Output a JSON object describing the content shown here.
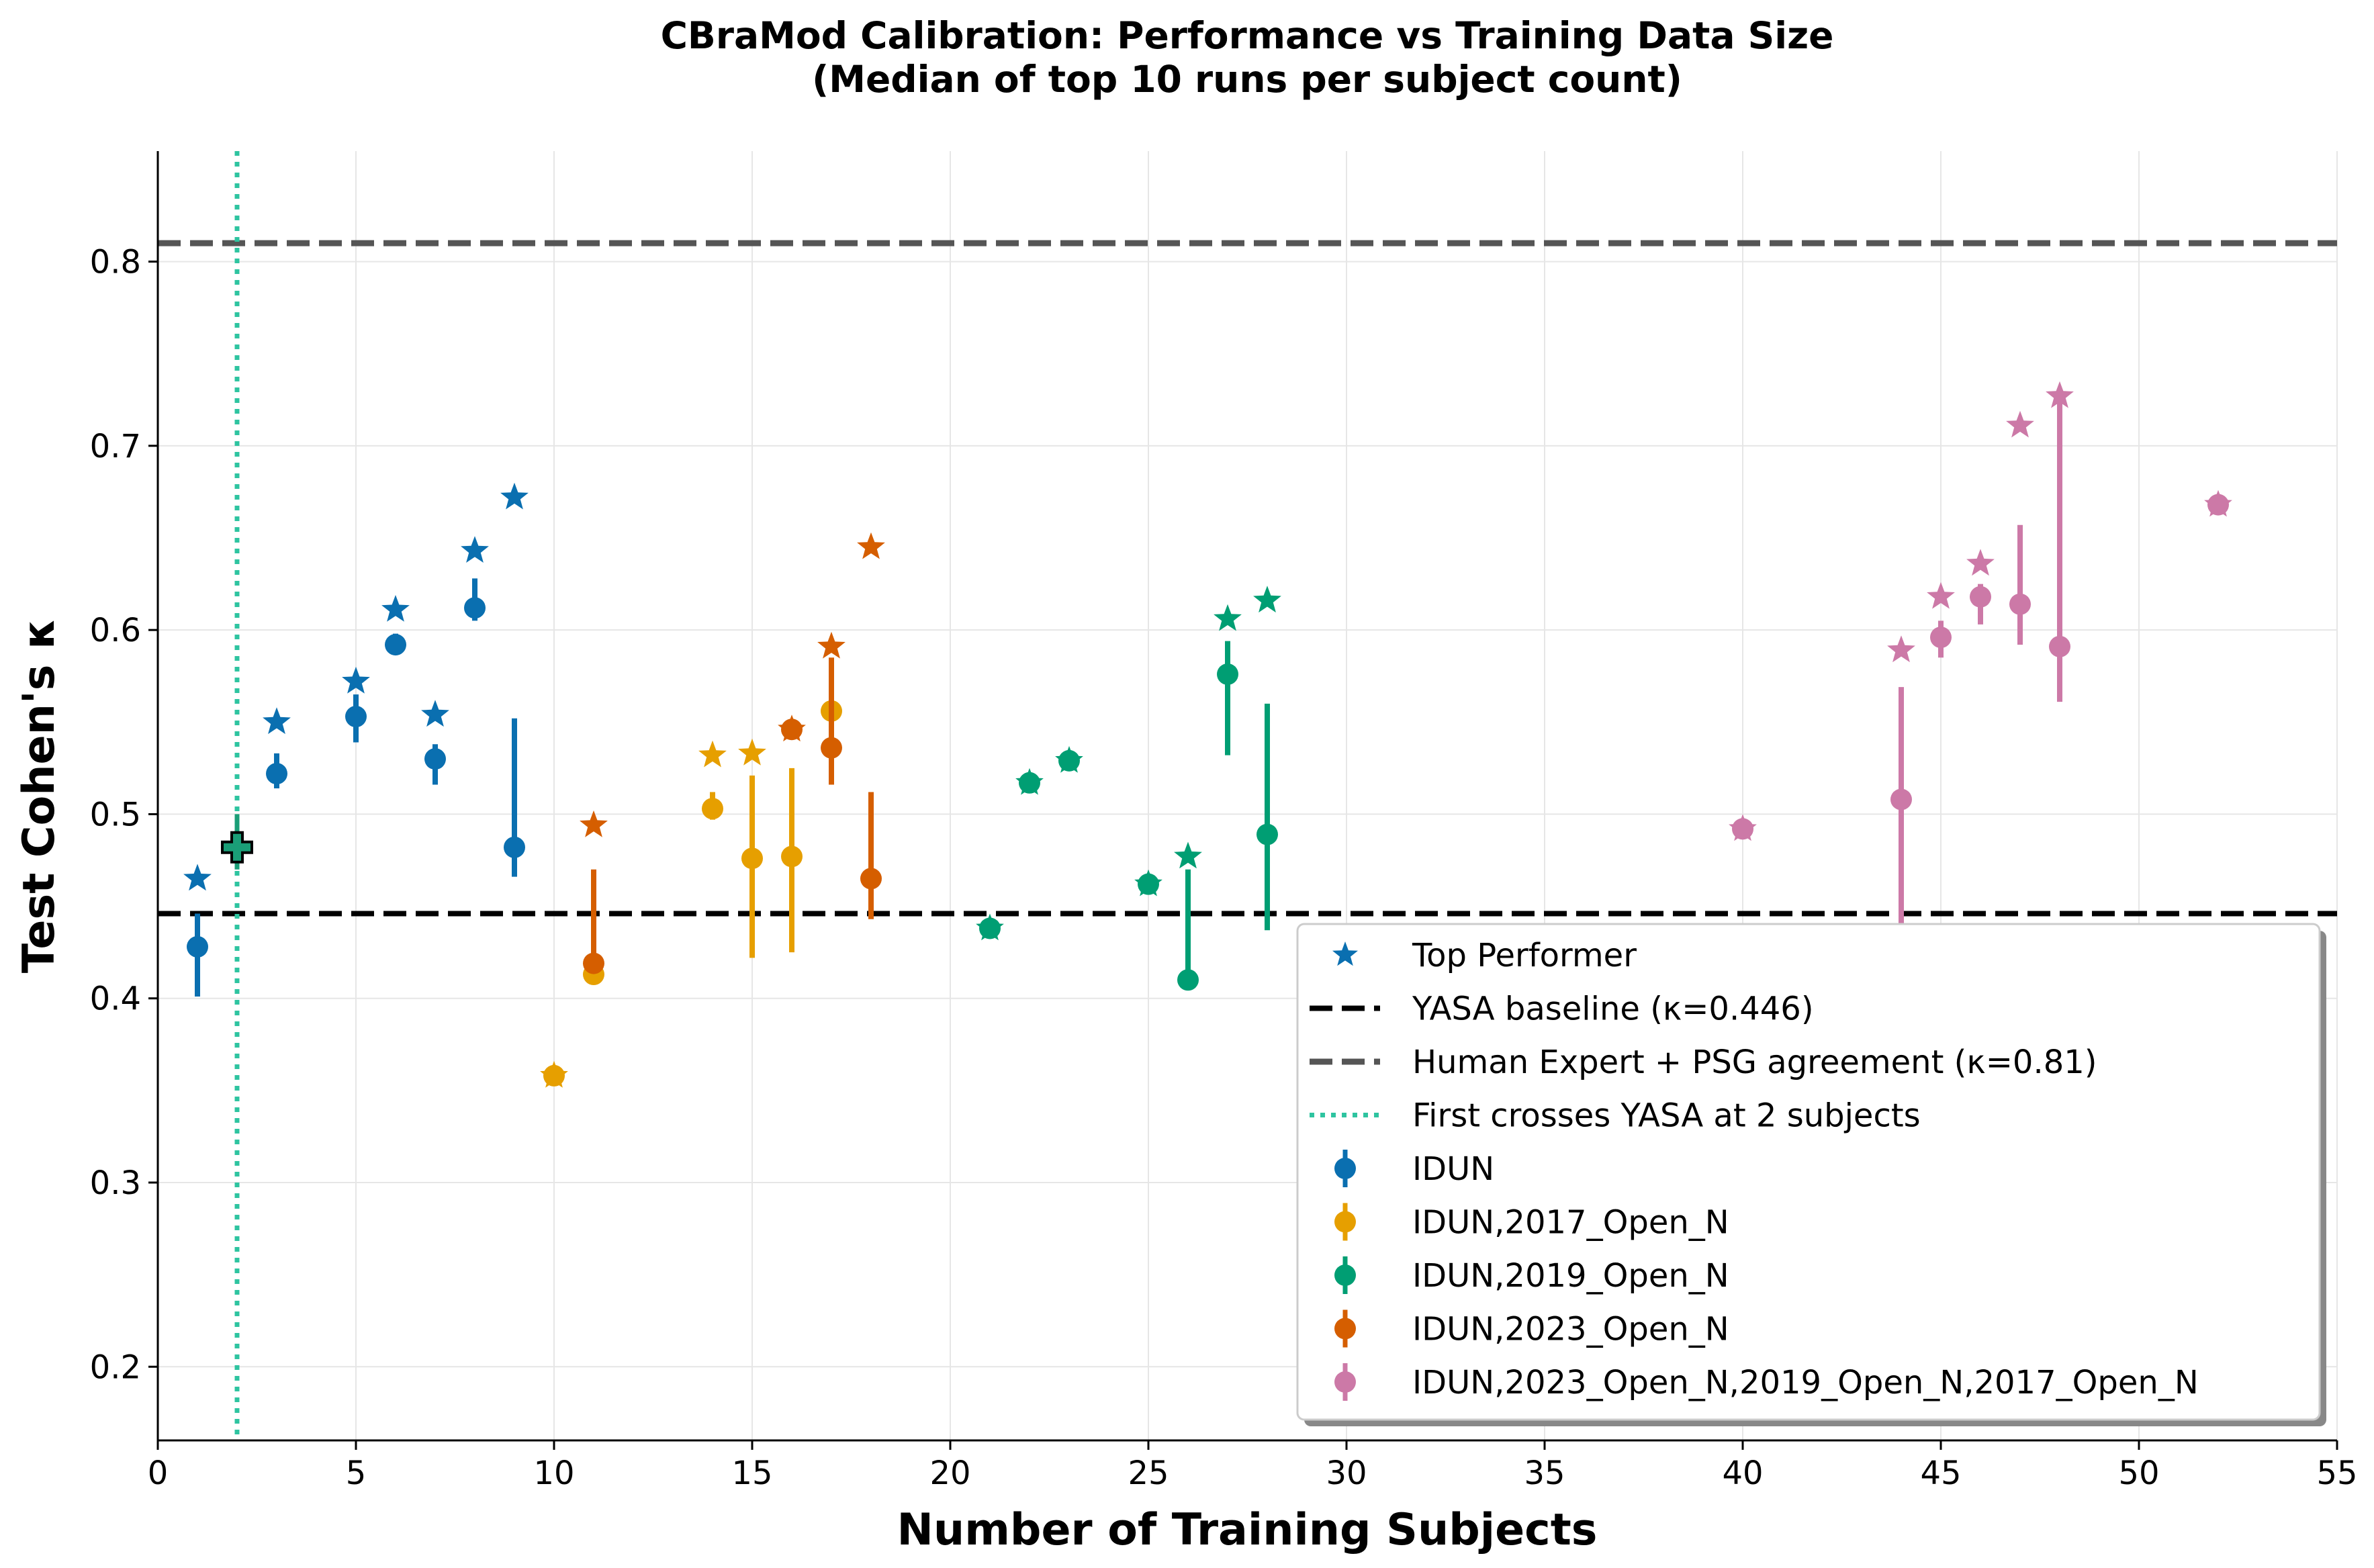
{
  "chart_data": {
    "type": "scatter",
    "title_lines": [
      "CBraMod Calibration: Performance vs Training Data Size",
      "(Median of top 10 runs per subject count)"
    ],
    "xlabel": "Number of Training Subjects",
    "ylabel": "Test Cohen's κ",
    "xlim": [
      0,
      55
    ],
    "ylim": [
      0.16,
      0.86
    ],
    "xticks": [
      0,
      5,
      10,
      15,
      20,
      25,
      30,
      35,
      40,
      45,
      50,
      55
    ],
    "yticks": [
      0.2,
      0.3,
      0.4,
      0.5,
      0.6,
      0.7,
      0.8
    ],
    "grid": true,
    "legend_position": "lower-right",
    "reference_lines": {
      "yasa": {
        "label": "YASA baseline (κ=0.446)",
        "y": 0.446,
        "color": "#000000"
      },
      "human": {
        "label": "Human Expert + PSG agreement (κ=0.81)",
        "y": 0.81,
        "color": "#555555"
      },
      "cross": {
        "label": "First crosses YASA at 2 subjects",
        "x": 2,
        "color": "#2ec4a0"
      }
    },
    "crossing_marker": {
      "x": 2,
      "y": 0.482,
      "yerr": [
        0.47,
        0.5
      ],
      "color": "#1a9e77"
    },
    "top_performer_label": "Top Performer",
    "series": [
      {
        "name": "IDUN",
        "color": "#0a6fb0",
        "points": [
          {
            "x": 1,
            "y": 0.428,
            "lo": 0.401,
            "hi": 0.446,
            "top": 0.465
          },
          {
            "x": 3,
            "y": 0.522,
            "lo": 0.514,
            "hi": 0.533,
            "top": 0.55
          },
          {
            "x": 5,
            "y": 0.553,
            "lo": 0.539,
            "hi": 0.565,
            "top": 0.572
          },
          {
            "x": 6,
            "y": 0.592,
            "lo": 0.588,
            "hi": 0.598,
            "top": 0.611
          },
          {
            "x": 7,
            "y": 0.53,
            "lo": 0.516,
            "hi": 0.538,
            "top": 0.554
          },
          {
            "x": 8,
            "y": 0.612,
            "lo": 0.605,
            "hi": 0.628,
            "top": 0.643
          },
          {
            "x": 9,
            "y": 0.482,
            "lo": 0.466,
            "hi": 0.552,
            "top": 0.672
          }
        ]
      },
      {
        "name": "IDUN,2017_Open_N",
        "color": "#e69f00",
        "points": [
          {
            "x": 10,
            "y": 0.358,
            "lo": 0.355,
            "hi": 0.362,
            "top": 0.358
          },
          {
            "x": 11,
            "y": 0.413,
            "lo": 0.41,
            "hi": 0.416,
            "top": null
          },
          {
            "x": 14,
            "y": 0.503,
            "lo": 0.497,
            "hi": 0.512,
            "top": 0.532
          },
          {
            "x": 15,
            "y": 0.476,
            "lo": 0.422,
            "hi": 0.521,
            "top": 0.533
          },
          {
            "x": 16,
            "y": 0.477,
            "lo": 0.425,
            "hi": 0.525,
            "top": null
          },
          {
            "x": 17,
            "y": 0.556,
            "lo": 0.552,
            "hi": 0.561,
            "top": null
          }
        ]
      },
      {
        "name": "IDUN,2019_Open_N",
        "color": "#009e73",
        "points": [
          {
            "x": 21,
            "y": 0.438,
            "lo": 0.436,
            "hi": 0.44,
            "top": 0.438
          },
          {
            "x": 22,
            "y": 0.517,
            "lo": 0.515,
            "hi": 0.519,
            "top": 0.517
          },
          {
            "x": 23,
            "y": 0.529,
            "lo": 0.527,
            "hi": 0.531,
            "top": 0.529
          },
          {
            "x": 25,
            "y": 0.462,
            "lo": 0.46,
            "hi": 0.464,
            "top": 0.462
          },
          {
            "x": 26,
            "y": 0.41,
            "lo": 0.41,
            "hi": 0.47,
            "top": 0.477
          },
          {
            "x": 27,
            "y": 0.576,
            "lo": 0.532,
            "hi": 0.594,
            "top": 0.606
          },
          {
            "x": 28,
            "y": 0.489,
            "lo": 0.437,
            "hi": 0.56,
            "top": 0.616
          }
        ]
      },
      {
        "name": "IDUN,2023_Open_N",
        "color": "#d55e00",
        "points": [
          {
            "x": 11,
            "y": 0.419,
            "lo": 0.416,
            "hi": 0.47,
            "top": 0.494
          },
          {
            "x": 16,
            "y": 0.546,
            "lo": 0.543,
            "hi": 0.549,
            "top": 0.546
          },
          {
            "x": 17,
            "y": 0.536,
            "lo": 0.516,
            "hi": 0.585,
            "top": 0.591
          },
          {
            "x": 18,
            "y": 0.465,
            "lo": 0.443,
            "hi": 0.512,
            "top": 0.645
          }
        ]
      },
      {
        "name": "IDUN,2023_Open_N,2019_Open_N,2017_Open_N",
        "color": "#cc79a7",
        "points": [
          {
            "x": 40,
            "y": 0.492,
            "lo": 0.49,
            "hi": 0.494,
            "top": 0.492
          },
          {
            "x": 44,
            "y": 0.508,
            "lo": 0.44,
            "hi": 0.569,
            "top": 0.589
          },
          {
            "x": 45,
            "y": 0.596,
            "lo": 0.585,
            "hi": 0.605,
            "top": 0.618
          },
          {
            "x": 46,
            "y": 0.618,
            "lo": 0.603,
            "hi": 0.625,
            "top": 0.636
          },
          {
            "x": 47,
            "y": 0.614,
            "lo": 0.592,
            "hi": 0.657,
            "top": 0.711
          },
          {
            "x": 48,
            "y": 0.591,
            "lo": 0.561,
            "hi": 0.724,
            "top": 0.727
          },
          {
            "x": 52,
            "y": 0.668,
            "lo": 0.666,
            "hi": 0.67,
            "top": 0.668
          }
        ]
      }
    ]
  }
}
